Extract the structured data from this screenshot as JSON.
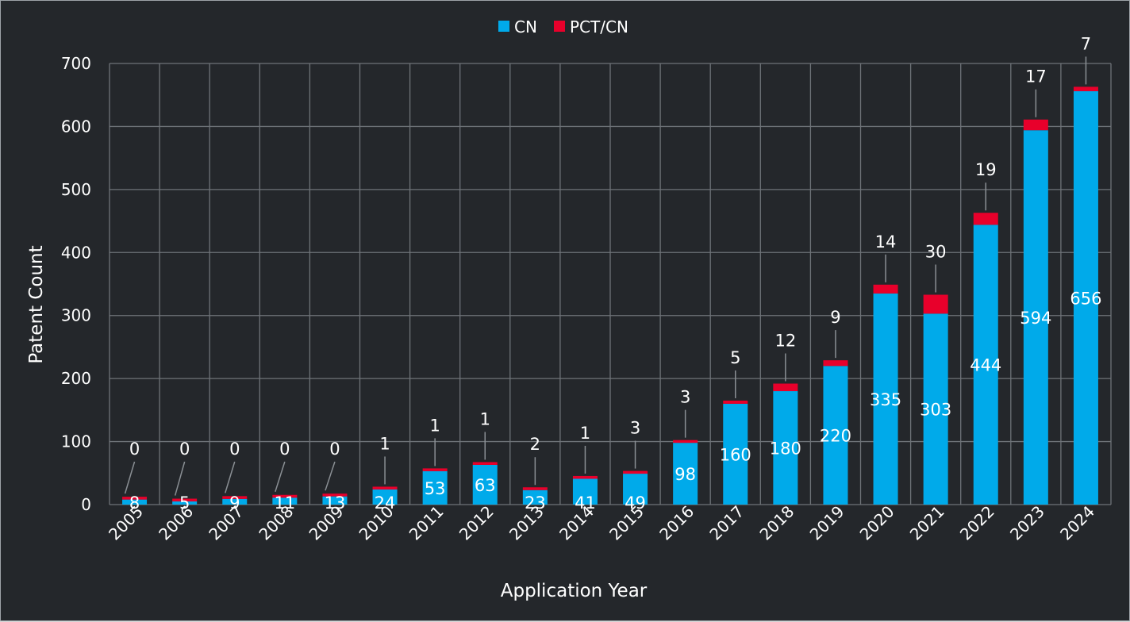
{
  "chart_data": {
    "type": "bar",
    "stacked": true,
    "categories": [
      "2005",
      "2006",
      "2007",
      "2008",
      "2009",
      "2010",
      "2011",
      "2012",
      "2013",
      "2014",
      "2015",
      "2016",
      "2017",
      "2018",
      "2019",
      "2020",
      "2021",
      "2022",
      "2023",
      "2024"
    ],
    "series": [
      {
        "name": "CN",
        "color": "#00aaea",
        "values": [
          8,
          5,
          9,
          11,
          13,
          24,
          53,
          63,
          23,
          41,
          49,
          98,
          160,
          180,
          220,
          335,
          303,
          444,
          594,
          656
        ]
      },
      {
        "name": "PCT/CN",
        "color": "#e8002b",
        "values": [
          0,
          0,
          0,
          0,
          0,
          1,
          1,
          1,
          2,
          1,
          3,
          3,
          5,
          12,
          9,
          14,
          30,
          19,
          17,
          7
        ]
      }
    ],
    "xlabel": "Application Year",
    "ylabel": "Patent Count",
    "ylim": [
      0,
      700
    ],
    "yticks": [
      0,
      100,
      200,
      300,
      400,
      500,
      600,
      700
    ],
    "grid": true,
    "legend_position": "top-center"
  }
}
